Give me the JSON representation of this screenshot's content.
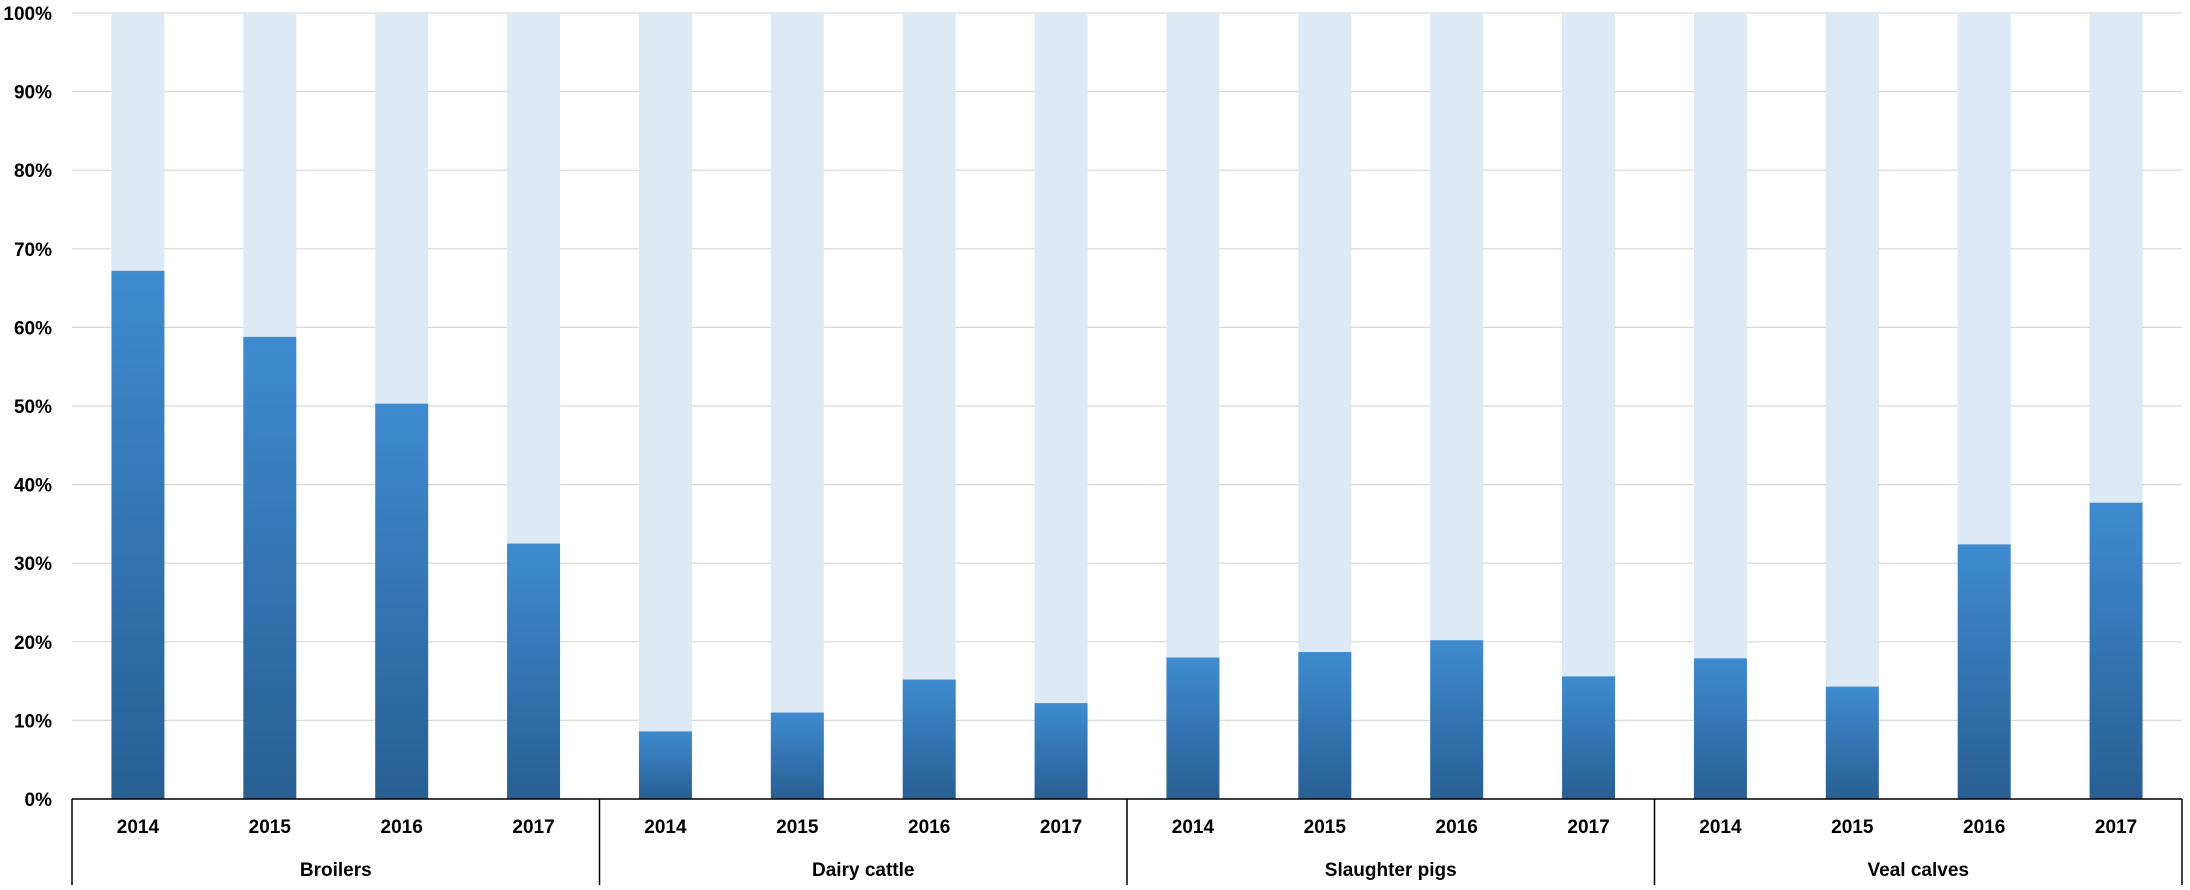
{
  "chart_data": {
    "type": "bar",
    "stacked": true,
    "percent_stacked": true,
    "groups": [
      {
        "name": "Broilers",
        "years": [
          "2014",
          "2015",
          "2016",
          "2017"
        ],
        "values": [
          67.2,
          58.8,
          50.3,
          32.5
        ]
      },
      {
        "name": "Dairy cattle",
        "years": [
          "2014",
          "2015",
          "2016",
          "2017"
        ],
        "values": [
          8.6,
          11.0,
          15.2,
          12.2
        ]
      },
      {
        "name": "Slaughter pigs",
        "years": [
          "2014",
          "2015",
          "2016",
          "2017"
        ],
        "values": [
          18.0,
          18.7,
          20.2,
          15.6
        ]
      },
      {
        "name": "Veal calves",
        "years": [
          "2014",
          "2015",
          "2016",
          "2017"
        ],
        "values": [
          17.9,
          14.3,
          32.4,
          37.7
        ]
      }
    ],
    "series": [
      {
        "color_top": "#3f8bd0",
        "color_bottom": "#285f93"
      },
      {
        "color": "#dde9f5"
      }
    ],
    "yticks": [
      "0%",
      "10%",
      "20%",
      "30%",
      "40%",
      "50%",
      "60%",
      "70%",
      "80%",
      "90%",
      "100%"
    ],
    "ylim": [
      0,
      100
    ],
    "grid": true,
    "legend": "none"
  }
}
